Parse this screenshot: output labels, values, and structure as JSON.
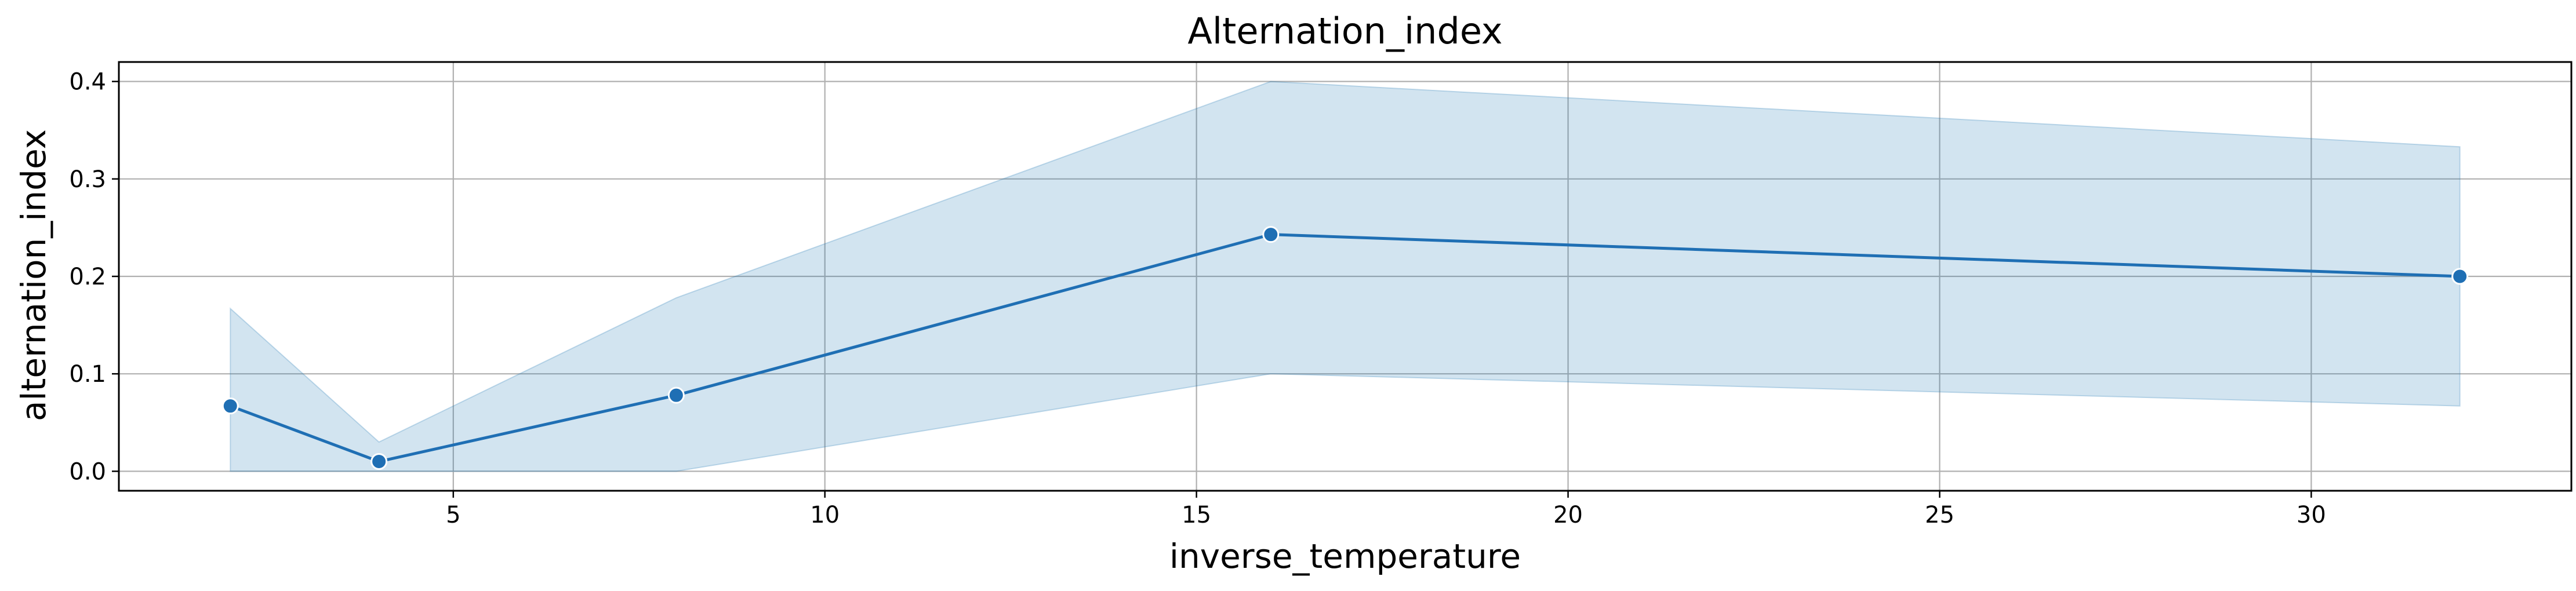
{
  "chart_data": {
    "type": "line",
    "title": "Alternation_index",
    "xlabel": "inverse_temperature",
    "ylabel": "alternation_index",
    "xlim": [
      0.5,
      33.5
    ],
    "ylim": [
      -0.02,
      0.42
    ],
    "xticks": [
      5,
      10,
      15,
      20,
      25,
      30
    ],
    "yticks": [
      0.0,
      0.1,
      0.2,
      0.3,
      0.4
    ],
    "xtick_labels": [
      "5",
      "10",
      "15",
      "20",
      "25",
      "30"
    ],
    "ytick_labels": [
      "0.0",
      "0.1",
      "0.2",
      "0.3",
      "0.4"
    ],
    "grid": true,
    "colors": {
      "line": "#1f6fb4",
      "band": "#1f77b4"
    },
    "series": [
      {
        "x": [
          2,
          4,
          8,
          16,
          32
        ],
        "values": [
          0.067,
          0.01,
          0.078,
          0.243,
          0.2
        ],
        "ci_lower": [
          0.0,
          0.0,
          0.0,
          0.1,
          0.067
        ],
        "ci_upper": [
          0.167,
          0.03,
          0.178,
          0.4,
          0.333
        ]
      }
    ]
  }
}
